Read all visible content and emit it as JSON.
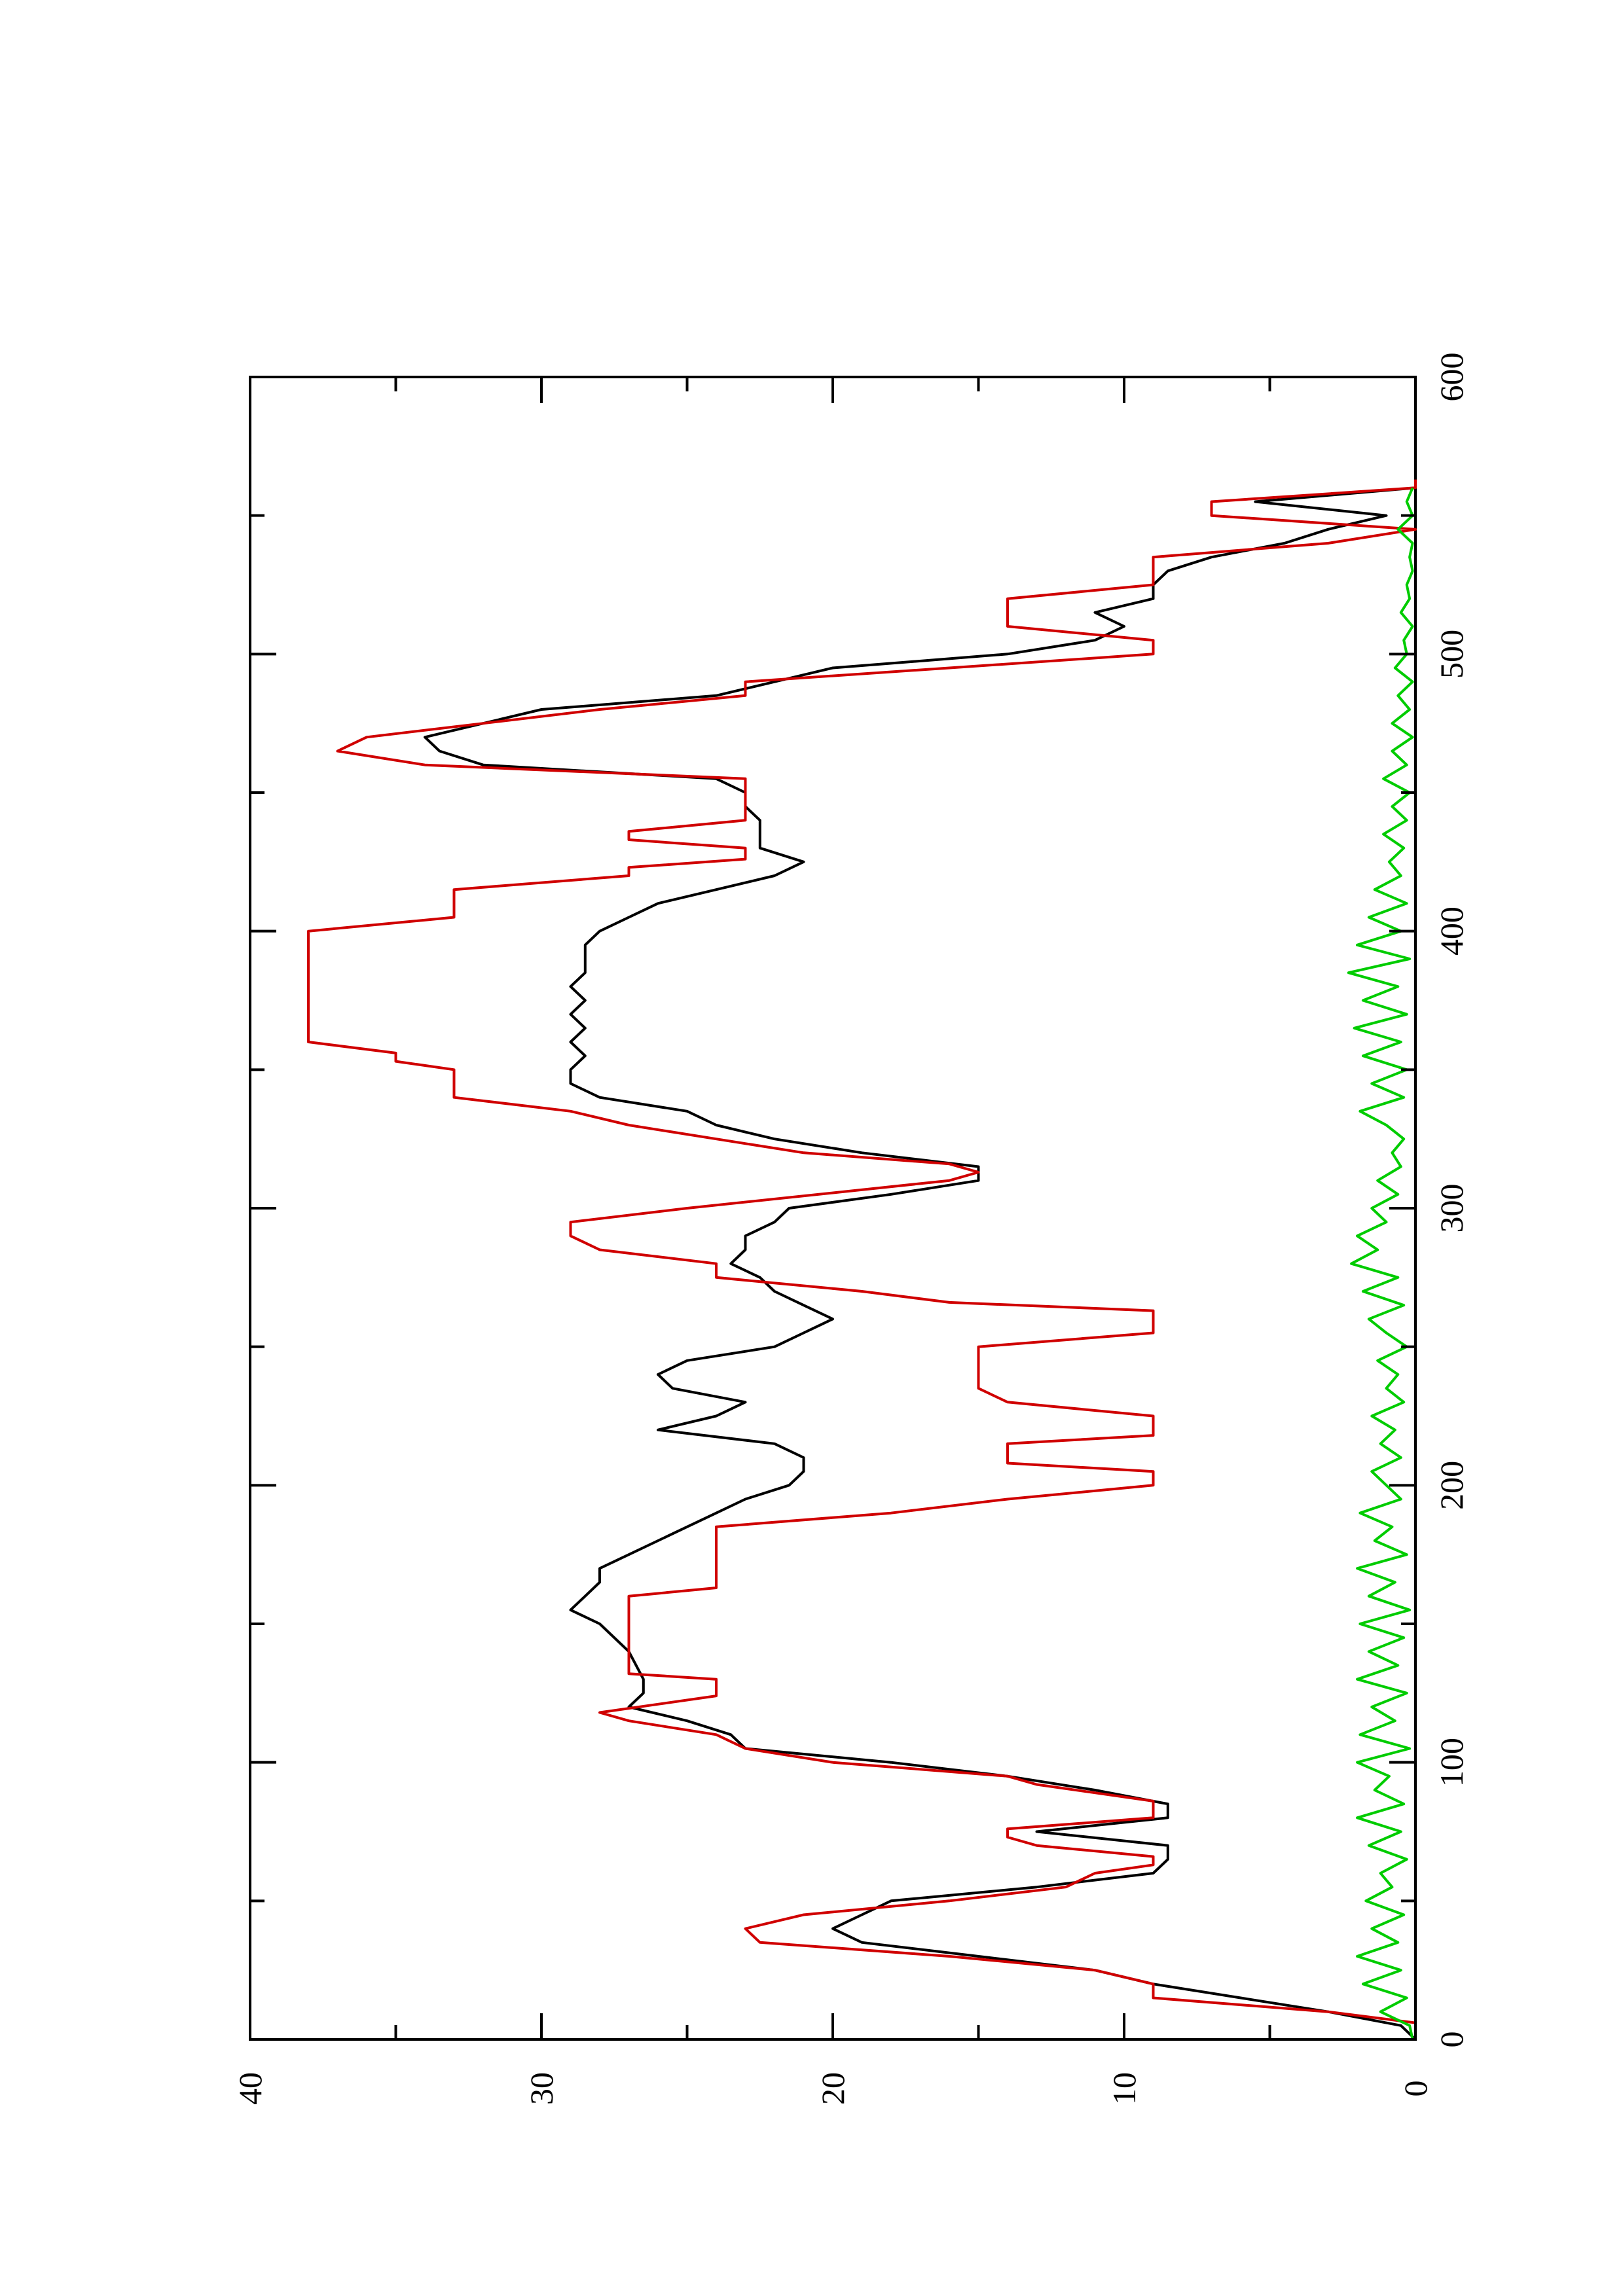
{
  "chart_data": {
    "type": "line",
    "orientation": "rotated-90-ccw",
    "title": "",
    "xlabel": "",
    "ylabel": "",
    "xlim": [
      0,
      600
    ],
    "ylim": [
      0,
      40
    ],
    "x_ticks": [
      "0",
      "100",
      "200",
      "300",
      "400",
      "500",
      "600"
    ],
    "y_ticks": [
      "0",
      "10",
      "20",
      "30",
      "40"
    ],
    "grid": false,
    "legend": "none",
    "series": [
      {
        "color": "#000000",
        "x": [
          0,
          5,
          10,
          15,
          20,
          25,
          30,
          35,
          40,
          45,
          50,
          55,
          60,
          65,
          70,
          75,
          80,
          85,
          90,
          95,
          100,
          105,
          110,
          115,
          120,
          125,
          130,
          140,
          150,
          155,
          160,
          165,
          170,
          175,
          180,
          185,
          190,
          195,
          200,
          205,
          210,
          215,
          220,
          225,
          230,
          235,
          240,
          245,
          250,
          255,
          260,
          265,
          270,
          275,
          280,
          285,
          290,
          295,
          300,
          305,
          310,
          315,
          320,
          325,
          330,
          335,
          340,
          345,
          350,
          355,
          360,
          365,
          370,
          375,
          380,
          385,
          390,
          395,
          400,
          405,
          410,
          415,
          420,
          425,
          430,
          435,
          440,
          445,
          450,
          455,
          460,
          465,
          470,
          475,
          480,
          485,
          490,
          495,
          500,
          505,
          510,
          515,
          520,
          525,
          530,
          535,
          540,
          545,
          550,
          555,
          560
        ],
        "y": [
          0,
          0.5,
          3,
          6,
          9,
          11,
          15,
          19,
          20,
          19,
          18,
          13,
          9,
          8.5,
          8.5,
          13,
          8.5,
          8.5,
          11,
          14,
          18,
          23,
          23.5,
          25,
          27,
          26.5,
          26.5,
          27,
          28,
          29,
          28.5,
          28,
          28,
          27,
          26,
          25,
          24,
          23,
          21.5,
          21,
          21,
          22,
          26,
          24,
          23,
          25.5,
          26,
          25,
          22,
          21,
          20,
          21,
          22,
          22.5,
          23.5,
          23,
          23,
          22,
          21.5,
          18,
          15,
          15,
          19,
          22,
          24,
          25,
          28,
          29,
          29,
          28.5,
          29,
          28.5,
          29,
          28.5,
          29,
          28.5,
          28.5,
          28.5,
          28,
          27,
          26,
          24,
          22,
          21,
          22.5,
          22.5,
          22.5,
          23,
          23,
          24,
          32,
          33.5,
          34,
          32,
          30,
          24,
          22,
          20,
          14,
          11,
          10,
          11,
          9,
          9,
          8.5,
          7,
          4.5,
          3,
          1,
          5.5,
          0
        ]
      },
      {
        "color": "#d00000",
        "x": [
          0,
          2,
          6,
          10,
          15,
          20,
          25,
          30,
          35,
          40,
          45,
          50,
          55,
          60,
          63,
          66,
          70,
          73,
          76,
          80,
          83,
          86,
          89,
          92,
          95,
          100,
          105,
          110,
          115,
          118,
          121,
          124,
          130,
          132,
          136,
          140,
          160,
          163,
          166,
          180,
          185,
          190,
          195,
          200,
          205,
          208,
          211,
          215,
          218,
          220,
          225,
          230,
          235,
          237,
          240,
          245,
          250,
          255,
          260,
          263,
          266,
          270,
          275,
          280,
          285,
          290,
          295,
          300,
          310,
          313,
          316,
          320,
          325,
          330,
          335,
          340,
          345,
          350,
          353,
          356,
          360,
          365,
          370,
          375,
          380,
          385,
          390,
          395,
          400,
          405,
          410,
          415,
          420,
          423,
          426,
          430,
          433,
          436,
          440,
          445,
          450,
          455,
          460,
          465,
          470,
          475,
          480,
          485,
          490,
          495,
          500,
          505,
          510,
          515,
          520,
          525,
          530,
          535,
          540,
          545,
          550,
          555,
          560,
          563
        ],
        "y": [
          0,
          0,
          0,
          3,
          9,
          9,
          11,
          16,
          22.5,
          23,
          21,
          16,
          12,
          11,
          9,
          9,
          13,
          14,
          14,
          9,
          9,
          9,
          11,
          13,
          14,
          20,
          23,
          24,
          27,
          28,
          26,
          24,
          24,
          27,
          27,
          27,
          27,
          24,
          24,
          24,
          24,
          18,
          14,
          9,
          9,
          14,
          14,
          14,
          9,
          9,
          9,
          14,
          15,
          15,
          15,
          15,
          15,
          9,
          9,
          9,
          16,
          19,
          24,
          24,
          28,
          29,
          29,
          25,
          16,
          15,
          16,
          21,
          24,
          27,
          29,
          33,
          33,
          33,
          35,
          35,
          38,
          38,
          38,
          38,
          38,
          38,
          38,
          38,
          38,
          33,
          33,
          33,
          27,
          27,
          23,
          23,
          27,
          27,
          23,
          23,
          23,
          23,
          34,
          37,
          36,
          32,
          28,
          23,
          23,
          16,
          9,
          9,
          14,
          14,
          14,
          9,
          9,
          9,
          3,
          0,
          7,
          7,
          0,
          0
        ]
      },
      {
        "color": "#00cc00",
        "x": [
          0,
          5,
          10,
          15,
          20,
          25,
          30,
          35,
          40,
          45,
          50,
          55,
          60,
          65,
          70,
          75,
          80,
          85,
          90,
          95,
          100,
          105,
          110,
          115,
          120,
          125,
          130,
          135,
          140,
          145,
          150,
          155,
          160,
          165,
          170,
          175,
          180,
          185,
          190,
          195,
          200,
          205,
          210,
          215,
          220,
          225,
          230,
          235,
          240,
          245,
          250,
          255,
          260,
          265,
          270,
          275,
          280,
          285,
          290,
          295,
          300,
          305,
          310,
          315,
          320,
          325,
          330,
          335,
          340,
          345,
          350,
          355,
          360,
          365,
          370,
          375,
          380,
          385,
          390,
          395,
          400,
          405,
          410,
          415,
          420,
          425,
          430,
          435,
          440,
          445,
          450,
          455,
          460,
          465,
          470,
          475,
          480,
          485,
          490,
          495,
          500,
          505,
          510,
          515,
          520,
          525,
          530,
          535,
          540,
          545,
          550,
          555,
          560
        ],
        "y": [
          0.1,
          0.2,
          1.2,
          0.3,
          1.8,
          0.5,
          2.0,
          0.6,
          1.5,
          0.4,
          1.7,
          0.8,
          1.2,
          0.3,
          1.6,
          0.5,
          2.0,
          0.4,
          1.4,
          0.9,
          2.0,
          0.2,
          1.9,
          0.7,
          1.5,
          0.3,
          2.0,
          0.6,
          1.6,
          0.4,
          1.9,
          0.2,
          1.6,
          0.7,
          2.0,
          0.3,
          1.4,
          0.8,
          1.9,
          0.5,
          1.0,
          1.5,
          0.5,
          1.2,
          0.7,
          1.5,
          0.4,
          1.0,
          0.6,
          1.3,
          0.3,
          1.0,
          1.6,
          0.4,
          1.8,
          0.6,
          2.2,
          1.3,
          2.0,
          1.0,
          1.5,
          0.6,
          1.3,
          0.5,
          0.8,
          0.4,
          1.0,
          1.9,
          0.4,
          1.5,
          0.3,
          1.8,
          0.5,
          2.1,
          0.3,
          1.8,
          0.6,
          2.3,
          0.2,
          2.0,
          0.5,
          1.6,
          0.3,
          1.4,
          0.5,
          0.9,
          0.4,
          1.1,
          0.3,
          0.8,
          0.2,
          1.1,
          0.3,
          0.8,
          0.1,
          0.8,
          0.2,
          0.6,
          0.1,
          0.7,
          0.3,
          0.4,
          0.1,
          0.5,
          0.2,
          0.3,
          0.1,
          0.2,
          0.1,
          0.6,
          0.1,
          0.3,
          0.1
        ]
      }
    ]
  }
}
